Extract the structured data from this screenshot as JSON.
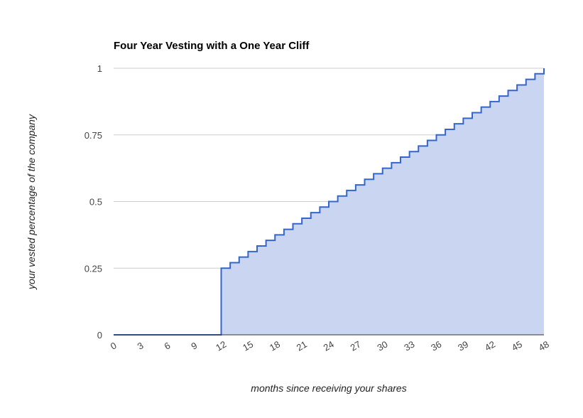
{
  "chart_data": {
    "type": "area",
    "title": "Four Year Vesting with a One Year Cliff",
    "xlabel": "months since receiving your shares",
    "ylabel": "your vested percentage of the company",
    "xlim": [
      0,
      48
    ],
    "ylim": [
      0,
      1
    ],
    "x_ticks": [
      "0",
      "3",
      "6",
      "9",
      "12",
      "15",
      "18",
      "21",
      "24",
      "27",
      "30",
      "33",
      "36",
      "39",
      "42",
      "45",
      "48"
    ],
    "y_ticks": [
      "0",
      "0.25",
      "0.5",
      "0.75",
      "1"
    ],
    "grid": true,
    "step": true,
    "colors": {
      "line": "#3366cc",
      "fill": "#c9d5f1",
      "grid": "#cccccc",
      "baseline": "#333333"
    },
    "x": [
      0,
      1,
      2,
      3,
      4,
      5,
      6,
      7,
      8,
      9,
      10,
      11,
      12,
      13,
      14,
      15,
      16,
      17,
      18,
      19,
      20,
      21,
      22,
      23,
      24,
      25,
      26,
      27,
      28,
      29,
      30,
      31,
      32,
      33,
      34,
      35,
      36,
      37,
      38,
      39,
      40,
      41,
      42,
      43,
      44,
      45,
      46,
      47,
      48
    ],
    "values": [
      0,
      0,
      0,
      0,
      0,
      0,
      0,
      0,
      0,
      0,
      0,
      0,
      0.25,
      0.2708,
      0.2917,
      0.3125,
      0.3333,
      0.3542,
      0.375,
      0.3958,
      0.4167,
      0.4375,
      0.4583,
      0.4792,
      0.5,
      0.5208,
      0.5417,
      0.5625,
      0.5833,
      0.6042,
      0.625,
      0.6458,
      0.6667,
      0.6875,
      0.7083,
      0.7292,
      0.75,
      0.7708,
      0.7917,
      0.8125,
      0.8333,
      0.8542,
      0.875,
      0.8958,
      0.9167,
      0.9375,
      0.9583,
      0.9792,
      1
    ]
  }
}
